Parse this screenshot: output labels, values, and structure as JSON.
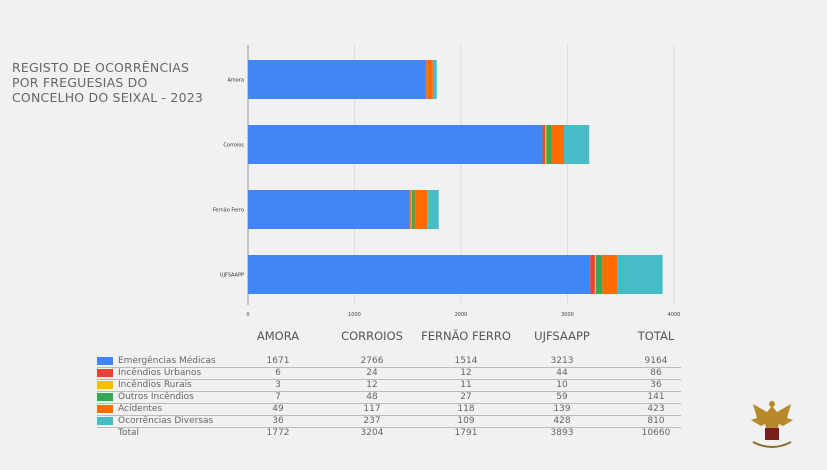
{
  "title_lines": [
    "REGISTO DE OCORRÊNCIAS",
    "POR FREGUESIAS DO",
    "CONCELHO DO SEIXAL - 2023"
  ],
  "chart_data": {
    "type": "bar",
    "orientation": "horizontal",
    "stacked": true,
    "title": "REGISTO DE OCORRÊNCIAS POR FREGUESIAS DO CONCELHO DO SEIXAL - 2023",
    "categories": [
      "Amora",
      "Corroios",
      "Fernão Ferro",
      "UJFSAAPP"
    ],
    "xlim": [
      0,
      4000
    ],
    "xticks": [
      "0",
      "1000",
      "2000",
      "3000",
      "4000"
    ],
    "grid": true,
    "series": [
      {
        "name": "Emergências Médicas",
        "color": "#4285f4",
        "values": [
          1671,
          2766,
          1514,
          3213
        ]
      },
      {
        "name": "Incêndios Urbanos",
        "color": "#ea4335",
        "values": [
          6,
          24,
          12,
          44
        ]
      },
      {
        "name": "Incêndios Rurais",
        "color": "#fbbc04",
        "values": [
          3,
          12,
          11,
          10
        ]
      },
      {
        "name": "Outros Incêndios",
        "color": "#34a853",
        "values": [
          7,
          48,
          27,
          59
        ]
      },
      {
        "name": "Acidentes",
        "color": "#ff6d01",
        "values": [
          49,
          117,
          118,
          139
        ]
      },
      {
        "name": "Ocorrências Diversas",
        "color": "#46bdc6",
        "values": [
          36,
          237,
          109,
          428
        ]
      }
    ]
  },
  "table": {
    "headers": [
      "AMORA",
      "CORROIOS",
      "FERNÃO FERRO",
      "UJFSAAPP",
      "TOTAL"
    ],
    "rows": [
      {
        "label": "Emergências Médicas",
        "values": [
          "1671",
          "2766",
          "1514",
          "3213",
          "9164"
        ]
      },
      {
        "label": "Incêndios Urbanos",
        "values": [
          "6",
          "24",
          "12",
          "44",
          "86"
        ]
      },
      {
        "label": "Incêndios Rurais",
        "values": [
          "3",
          "12",
          "11",
          "10",
          "36"
        ]
      },
      {
        "label": "Outros Incêndios",
        "values": [
          "7",
          "48",
          "27",
          "59",
          "141"
        ]
      },
      {
        "label": "Acidentes",
        "values": [
          "49",
          "117",
          "118",
          "139",
          "423"
        ]
      },
      {
        "label": "Ocorrências Diversas",
        "values": [
          "36",
          "237",
          "109",
          "428",
          "810"
        ]
      },
      {
        "label": "Total",
        "values": [
          "1772",
          "3204",
          "1791",
          "3893",
          "10660"
        ]
      }
    ]
  },
  "logo": {
    "icon": "eagle-emblem-icon"
  }
}
